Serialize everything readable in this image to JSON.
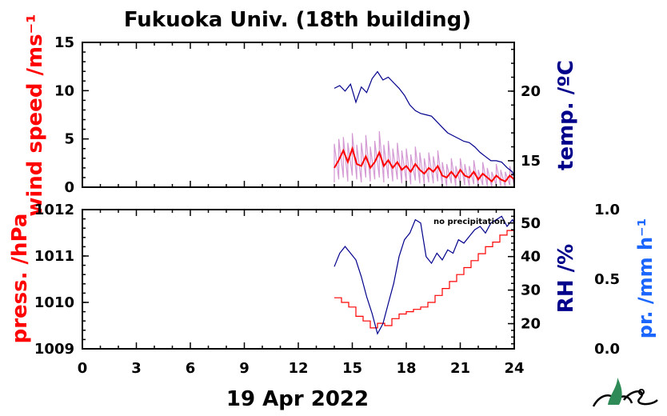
{
  "colors": {
    "wind": "#ff0000",
    "wind_gust": "#cc88cc",
    "temp": "#00008b",
    "press": "#ff0000",
    "rh": "#00008b",
    "precip": "#1a66ff",
    "axis": "#000000",
    "logo_green": "#2e8b57"
  },
  "chart_data": [
    {
      "type": "line",
      "title": "Fukuoka Univ. (18th building)",
      "xlabel": "19 Apr 2022",
      "xlim": [
        0,
        24
      ],
      "xticks": [
        "0",
        "3",
        "6",
        "9",
        "12",
        "15",
        "18",
        "21",
        "24"
      ],
      "left_axis": {
        "label": "wind speed /ms⁻¹",
        "ylim": [
          0,
          15
        ],
        "ticks": [
          "0",
          "5",
          "10",
          "15"
        ]
      },
      "right_axis": {
        "label": "temp. /ºC",
        "ylim": [
          13.1,
          23.5
        ],
        "ticks": [
          "15",
          "20"
        ]
      },
      "series": [
        {
          "axis": "left",
          "x": [
            14.0,
            14.25,
            14.5,
            14.75,
            15.0,
            15.25,
            15.5,
            15.75,
            16.0,
            16.25,
            16.5,
            16.75,
            17.0,
            17.25,
            17.5,
            17.75,
            18.0,
            18.25,
            18.5,
            18.75,
            19.0,
            19.25,
            19.5,
            19.75,
            20.0,
            20.25,
            20.5,
            20.75,
            21.0,
            21.25,
            21.5,
            21.75,
            22.0,
            22.25,
            22.5,
            22.75,
            23.0,
            23.25,
            23.5,
            23.75,
            24.0
          ],
          "values": [
            2.0,
            2.8,
            3.8,
            2.6,
            4.0,
            2.4,
            2.2,
            3.2,
            2.0,
            2.6,
            3.6,
            2.2,
            2.8,
            2.0,
            2.6,
            1.8,
            2.2,
            1.6,
            2.4,
            1.8,
            1.4,
            2.0,
            1.6,
            2.2,
            1.2,
            1.0,
            1.6,
            1.0,
            1.8,
            1.2,
            1.0,
            1.6,
            0.8,
            1.4,
            1.0,
            0.6,
            1.2,
            0.8,
            0.6,
            1.2,
            0.8
          ]
        },
        {
          "axis": "left",
          "x": [
            14.0,
            14.25,
            14.5,
            14.75,
            15.0,
            15.25,
            15.5,
            15.75,
            16.0,
            16.25,
            16.5,
            16.75,
            17.0,
            17.25,
            17.5,
            17.75,
            18.0,
            18.25,
            18.5,
            18.75,
            19.0,
            19.25,
            19.5,
            19.75,
            20.0,
            20.25,
            20.5,
            20.75,
            21.0,
            21.25,
            21.5,
            21.75,
            22.0,
            22.25,
            22.5,
            22.75,
            23.0,
            23.25,
            23.5,
            23.75,
            24.0
          ],
          "low": [
            0.5,
            0.8,
            1.0,
            0.6,
            1.2,
            0.8,
            0.5,
            1.0,
            0.6,
            0.8,
            1.0,
            0.5,
            0.9,
            0.6,
            0.8,
            0.4,
            0.6,
            0.3,
            0.7,
            0.4,
            0.3,
            0.5,
            0.4,
            0.6,
            0.2,
            0.1,
            0.4,
            0.1,
            0.4,
            0.2,
            0.1,
            0.3,
            0.1,
            0.2,
            0.1,
            0.0,
            0.2,
            0.1,
            0.0,
            0.2,
            0.1
          ],
          "high": [
            4.5,
            5.0,
            5.2,
            4.6,
            5.6,
            4.4,
            4.6,
            5.4,
            4.2,
            4.8,
            5.8,
            4.4,
            4.8,
            4.0,
            4.6,
            3.8,
            4.0,
            3.4,
            4.2,
            3.6,
            3.0,
            3.6,
            3.2,
            3.8,
            2.6,
            2.4,
            3.0,
            2.2,
            3.0,
            2.4,
            2.2,
            2.8,
            1.8,
            2.6,
            2.0,
            1.6,
            2.4,
            1.8,
            1.6,
            2.2,
            1.8
          ]
        },
        {
          "axis": "right",
          "x": [
            14.0,
            14.3,
            14.6,
            14.9,
            15.2,
            15.5,
            15.8,
            16.1,
            16.4,
            16.7,
            17.0,
            17.3,
            17.6,
            17.9,
            18.2,
            18.5,
            18.8,
            19.1,
            19.4,
            19.7,
            20.0,
            20.3,
            20.6,
            20.9,
            21.2,
            21.5,
            21.8,
            22.1,
            22.4,
            22.7,
            23.0,
            23.3,
            23.6,
            23.9,
            24.0
          ],
          "values": [
            20.2,
            20.4,
            20.0,
            20.5,
            19.2,
            20.3,
            19.9,
            20.9,
            21.4,
            20.8,
            21.0,
            20.6,
            20.2,
            19.7,
            19.0,
            18.6,
            18.4,
            18.3,
            18.2,
            17.8,
            17.4,
            17.0,
            16.8,
            16.6,
            16.4,
            16.3,
            16.0,
            15.6,
            15.3,
            15.0,
            15.0,
            14.9,
            14.5,
            14.2,
            13.8
          ]
        }
      ]
    },
    {
      "type": "line",
      "xlim": [
        0,
        24
      ],
      "xticks": [
        "0",
        "3",
        "6",
        "9",
        "12",
        "15",
        "18",
        "21",
        "24"
      ],
      "left_axis": {
        "label": "press. /hPa",
        "ylim": [
          1009,
          1012
        ],
        "ticks": [
          "1009",
          "1010",
          "1011",
          "1012"
        ]
      },
      "right_axis": {
        "label": "RH /%",
        "ylim": [
          12.5,
          54
        ],
        "ticks": [
          "20",
          "30",
          "40",
          "50"
        ]
      },
      "far_right_axis": {
        "label": "pr. /mm h⁻¹",
        "ylim": [
          0,
          1
        ],
        "ticks": [
          "0.0",
          "0.5",
          "1.0"
        ]
      },
      "annotation": "no precipitation",
      "series": [
        {
          "axis": "left",
          "x": [
            14.0,
            14.4,
            14.8,
            15.2,
            15.6,
            16.0,
            16.4,
            16.8,
            17.2,
            17.6,
            18.0,
            18.4,
            18.8,
            19.2,
            19.6,
            20.0,
            20.4,
            20.8,
            21.2,
            21.6,
            22.0,
            22.4,
            22.8,
            23.2,
            23.6,
            24.0
          ],
          "values": [
            1010.1,
            1010.0,
            1009.9,
            1009.7,
            1009.6,
            1009.45,
            1009.55,
            1009.5,
            1009.65,
            1009.75,
            1009.8,
            1009.85,
            1009.9,
            1010.0,
            1010.15,
            1010.3,
            1010.45,
            1010.6,
            1010.75,
            1010.9,
            1011.05,
            1011.2,
            1011.3,
            1011.45,
            1011.55,
            1011.7
          ]
        },
        {
          "axis": "right",
          "x": [
            14.0,
            14.3,
            14.6,
            14.9,
            15.2,
            15.5,
            15.8,
            16.1,
            16.4,
            16.7,
            17.0,
            17.3,
            17.6,
            17.9,
            18.2,
            18.5,
            18.8,
            19.1,
            19.4,
            19.7,
            20.0,
            20.3,
            20.6,
            20.9,
            21.2,
            21.5,
            21.8,
            22.1,
            22.4,
            22.7,
            23.0,
            23.3,
            23.6,
            23.9,
            24.0
          ],
          "values": [
            37,
            41,
            43,
            41,
            39,
            34,
            28,
            23,
            17,
            20,
            26,
            32,
            40,
            45,
            47,
            51,
            50,
            40,
            38,
            41,
            39,
            42,
            41,
            45,
            44,
            46,
            48,
            49,
            47,
            50,
            51,
            52,
            49,
            51,
            50
          ]
        }
      ]
    }
  ]
}
